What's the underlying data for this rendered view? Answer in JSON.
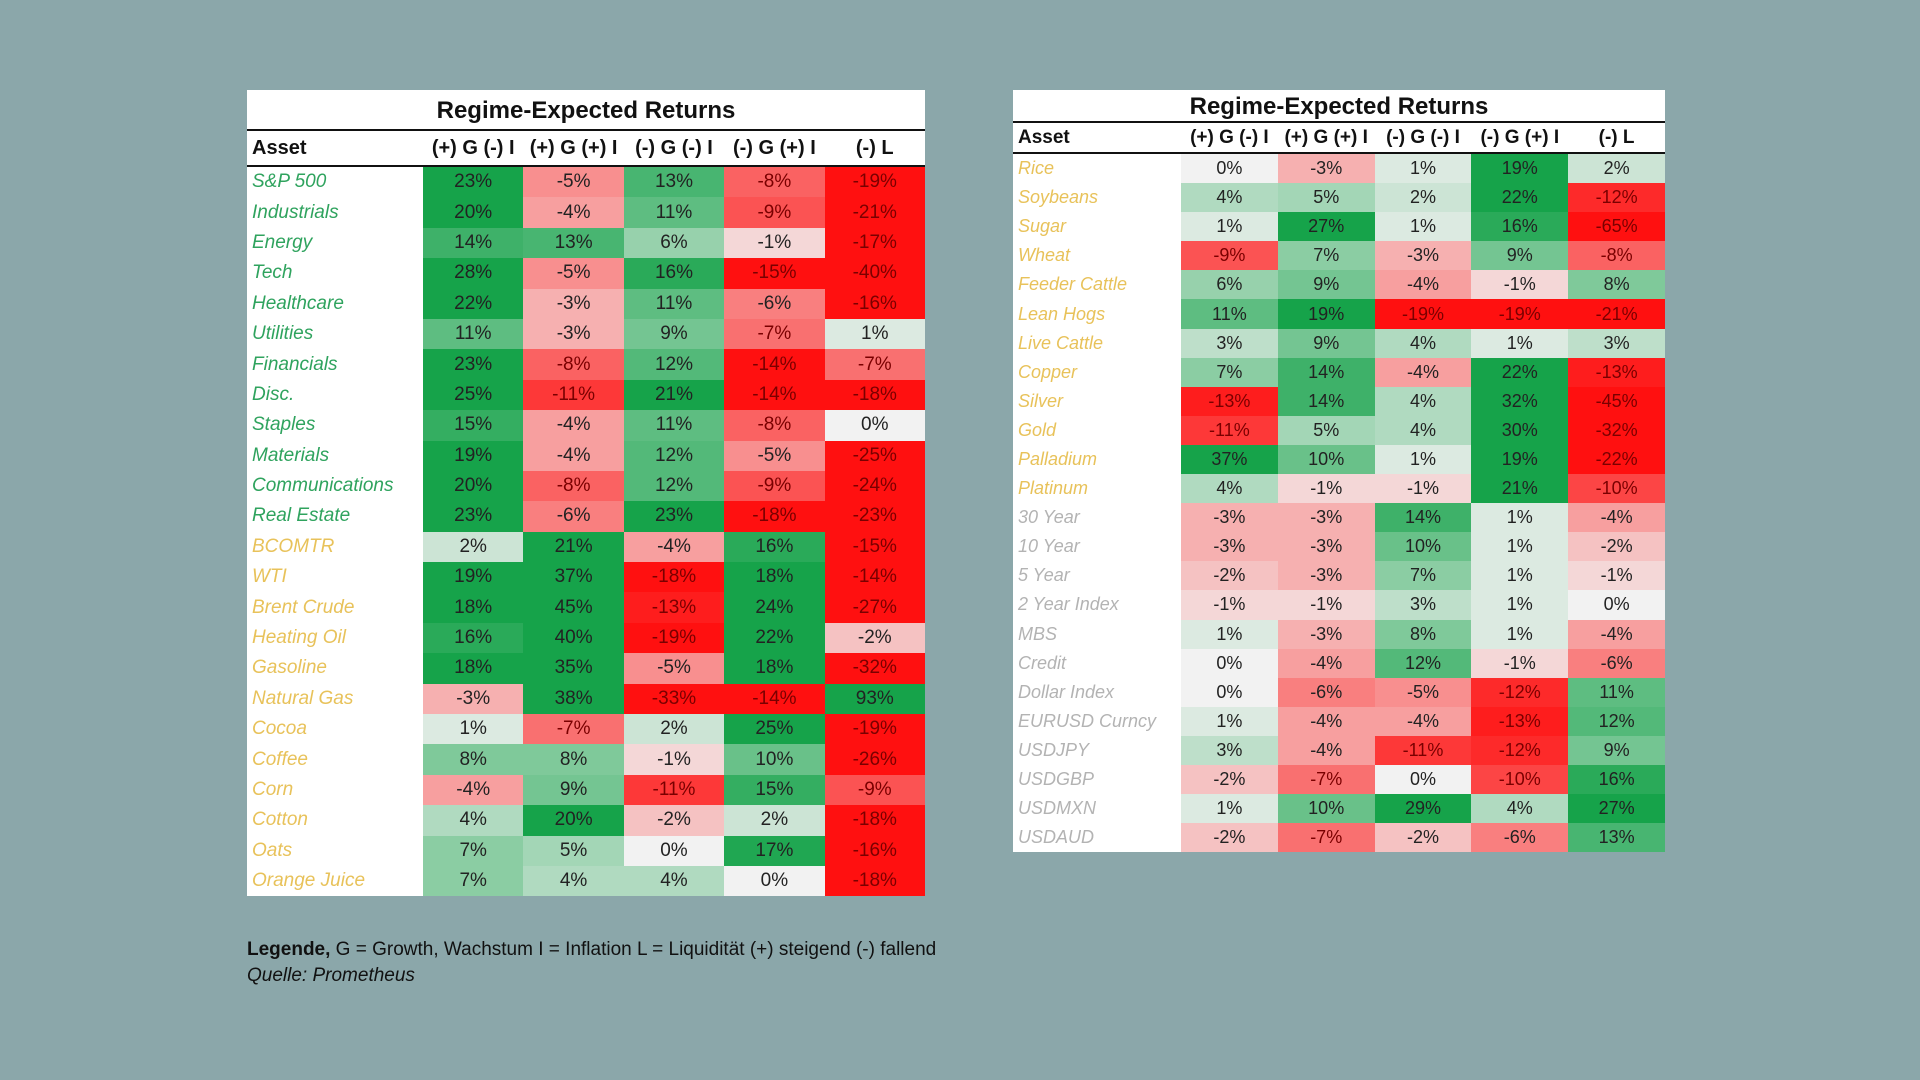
{
  "colors": {
    "background": "#8ba7aa",
    "equity_label": "#2fa35e",
    "commodity_label": "#e8c25a",
    "other_label": "#b3b3b3",
    "positive_strong": "#16a34a",
    "negative_strong": "#ff1010",
    "neutral": "#f2f2f2"
  },
  "chart_data": [
    {
      "type": "table",
      "title": "Regime-Expected Returns",
      "columns": [
        "Asset",
        "(+) G (-) I",
        "(+) G (+) I",
        "(-) G (-) I",
        "(-) G (+) I",
        "(-) L"
      ],
      "rows": [
        {
          "asset": "S&P 500",
          "group": "equity",
          "values": [
            "23%",
            "-5%",
            "13%",
            "-8%",
            "-19%"
          ]
        },
        {
          "asset": "Industrials",
          "group": "equity",
          "values": [
            "20%",
            "-4%",
            "11%",
            "-9%",
            "-21%"
          ]
        },
        {
          "asset": "Energy",
          "group": "equity",
          "values": [
            "14%",
            "13%",
            "6%",
            "-1%",
            "-17%"
          ]
        },
        {
          "asset": "Tech",
          "group": "equity",
          "values": [
            "28%",
            "-5%",
            "16%",
            "-15%",
            "-40%"
          ]
        },
        {
          "asset": "Healthcare",
          "group": "equity",
          "values": [
            "22%",
            "-3%",
            "11%",
            "-6%",
            "-16%"
          ]
        },
        {
          "asset": "Utilities",
          "group": "equity",
          "values": [
            "11%",
            "-3%",
            "9%",
            "-7%",
            "1%"
          ]
        },
        {
          "asset": "Financials",
          "group": "equity",
          "values": [
            "23%",
            "-8%",
            "12%",
            "-14%",
            "-7%"
          ]
        },
        {
          "asset": "Disc.",
          "group": "equity",
          "values": [
            "25%",
            "-11%",
            "21%",
            "-14%",
            "-18%"
          ]
        },
        {
          "asset": "Staples",
          "group": "equity",
          "values": [
            "15%",
            "-4%",
            "11%",
            "-8%",
            "0%"
          ]
        },
        {
          "asset": "Materials",
          "group": "equity",
          "values": [
            "19%",
            "-4%",
            "12%",
            "-5%",
            "-25%"
          ]
        },
        {
          "asset": "Communications",
          "group": "equity",
          "values": [
            "20%",
            "-8%",
            "12%",
            "-9%",
            "-24%"
          ]
        },
        {
          "asset": "Real Estate",
          "group": "equity",
          "values": [
            "23%",
            "-6%",
            "23%",
            "-18%",
            "-23%"
          ]
        },
        {
          "asset": "BCOMTR",
          "group": "commodity",
          "values": [
            "2%",
            "21%",
            "-4%",
            "16%",
            "-15%"
          ]
        },
        {
          "asset": "WTI",
          "group": "commodity",
          "values": [
            "19%",
            "37%",
            "-18%",
            "18%",
            "-14%"
          ]
        },
        {
          "asset": "Brent Crude",
          "group": "commodity",
          "values": [
            "18%",
            "45%",
            "-13%",
            "24%",
            "-27%"
          ]
        },
        {
          "asset": "Heating Oil",
          "group": "commodity",
          "values": [
            "16%",
            "40%",
            "-19%",
            "22%",
            "-2%"
          ]
        },
        {
          "asset": "Gasoline",
          "group": "commodity",
          "values": [
            "18%",
            "35%",
            "-5%",
            "18%",
            "-32%"
          ]
        },
        {
          "asset": "Natural Gas",
          "group": "commodity",
          "values": [
            "-3%",
            "38%",
            "-33%",
            "-14%",
            "93%"
          ]
        },
        {
          "asset": "Cocoa",
          "group": "commodity",
          "values": [
            "1%",
            "-7%",
            "2%",
            "25%",
            "-19%"
          ]
        },
        {
          "asset": "Coffee",
          "group": "commodity",
          "values": [
            "8%",
            "8%",
            "-1%",
            "10%",
            "-26%"
          ]
        },
        {
          "asset": "Corn",
          "group": "commodity",
          "values": [
            "-4%",
            "9%",
            "-11%",
            "15%",
            "-9%"
          ]
        },
        {
          "asset": "Cotton",
          "group": "commodity",
          "values": [
            "4%",
            "20%",
            "-2%",
            "2%",
            "-18%"
          ]
        },
        {
          "asset": "Oats",
          "group": "commodity",
          "values": [
            "7%",
            "5%",
            "0%",
            "17%",
            "-16%"
          ]
        },
        {
          "asset": "Orange Juice",
          "group": "commodity",
          "values": [
            "7%",
            "4%",
            "4%",
            "0%",
            "-18%"
          ]
        }
      ]
    },
    {
      "type": "table",
      "title": "Regime-Expected Returns",
      "columns": [
        "Asset",
        "(+) G (-) I",
        "(+) G (+) I",
        "(-) G (-) I",
        "(-) G (+) I",
        "(-) L"
      ],
      "rows": [
        {
          "asset": "Rice",
          "group": "commodity",
          "values": [
            "0%",
            "-3%",
            "1%",
            "19%",
            "2%"
          ]
        },
        {
          "asset": "Soybeans",
          "group": "commodity",
          "values": [
            "4%",
            "5%",
            "2%",
            "22%",
            "-12%"
          ]
        },
        {
          "asset": "Sugar",
          "group": "commodity",
          "values": [
            "1%",
            "27%",
            "1%",
            "16%",
            "-65%"
          ]
        },
        {
          "asset": "Wheat",
          "group": "commodity",
          "values": [
            "-9%",
            "7%",
            "-3%",
            "9%",
            "-8%"
          ]
        },
        {
          "asset": "Feeder Cattle",
          "group": "commodity",
          "values": [
            "6%",
            "9%",
            "-4%",
            "-1%",
            "8%"
          ]
        },
        {
          "asset": "Lean Hogs",
          "group": "commodity",
          "values": [
            "11%",
            "19%",
            "-19%",
            "-19%",
            "-21%"
          ]
        },
        {
          "asset": "Live Cattle",
          "group": "commodity",
          "values": [
            "3%",
            "9%",
            "4%",
            "1%",
            "3%"
          ]
        },
        {
          "asset": "Copper",
          "group": "commodity",
          "values": [
            "7%",
            "14%",
            "-4%",
            "22%",
            "-13%"
          ]
        },
        {
          "asset": "Silver",
          "group": "commodity",
          "values": [
            "-13%",
            "14%",
            "4%",
            "32%",
            "-45%"
          ]
        },
        {
          "asset": "Gold",
          "group": "commodity",
          "values": [
            "-11%",
            "5%",
            "4%",
            "30%",
            "-32%"
          ]
        },
        {
          "asset": "Palladium",
          "group": "commodity",
          "values": [
            "37%",
            "10%",
            "1%",
            "19%",
            "-22%"
          ]
        },
        {
          "asset": "Platinum",
          "group": "commodity",
          "values": [
            "4%",
            "-1%",
            "-1%",
            "21%",
            "-10%"
          ]
        },
        {
          "asset": "30 Year",
          "group": "other",
          "values": [
            "-3%",
            "-3%",
            "14%",
            "1%",
            "-4%"
          ]
        },
        {
          "asset": "10 Year",
          "group": "other",
          "values": [
            "-3%",
            "-3%",
            "10%",
            "1%",
            "-2%"
          ]
        },
        {
          "asset": "5 Year",
          "group": "other",
          "values": [
            "-2%",
            "-3%",
            "7%",
            "1%",
            "-1%"
          ]
        },
        {
          "asset": "2 Year Index",
          "group": "other",
          "values": [
            "-1%",
            "-1%",
            "3%",
            "1%",
            "0%"
          ]
        },
        {
          "asset": "MBS",
          "group": "other",
          "values": [
            "1%",
            "-3%",
            "8%",
            "1%",
            "-4%"
          ]
        },
        {
          "asset": "Credit",
          "group": "other",
          "values": [
            "0%",
            "-4%",
            "12%",
            "-1%",
            "-6%"
          ]
        },
        {
          "asset": "Dollar Index",
          "group": "other",
          "values": [
            "0%",
            "-6%",
            "-5%",
            "-12%",
            "11%"
          ]
        },
        {
          "asset": "EURUSD Curncy",
          "group": "other",
          "values": [
            "1%",
            "-4%",
            "-4%",
            "-13%",
            "12%"
          ]
        },
        {
          "asset": "USDJPY",
          "group": "other",
          "values": [
            "3%",
            "-4%",
            "-11%",
            "-12%",
            "9%"
          ]
        },
        {
          "asset": "USDGBP",
          "group": "other",
          "values": [
            "-2%",
            "-7%",
            "0%",
            "-10%",
            "16%"
          ]
        },
        {
          "asset": "USDMXN",
          "group": "other",
          "values": [
            "1%",
            "10%",
            "29%",
            "4%",
            "27%"
          ]
        },
        {
          "asset": "USDAUD",
          "group": "other",
          "values": [
            "-2%",
            "-7%",
            "-2%",
            "-6%",
            "13%"
          ]
        }
      ]
    }
  ],
  "legend": {
    "label": "Legende,",
    "text": " G = Growth, Wachstum I = Inflation L = Liquidität (+) steigend (-) fallend",
    "source": "Quelle: Prometheus"
  }
}
